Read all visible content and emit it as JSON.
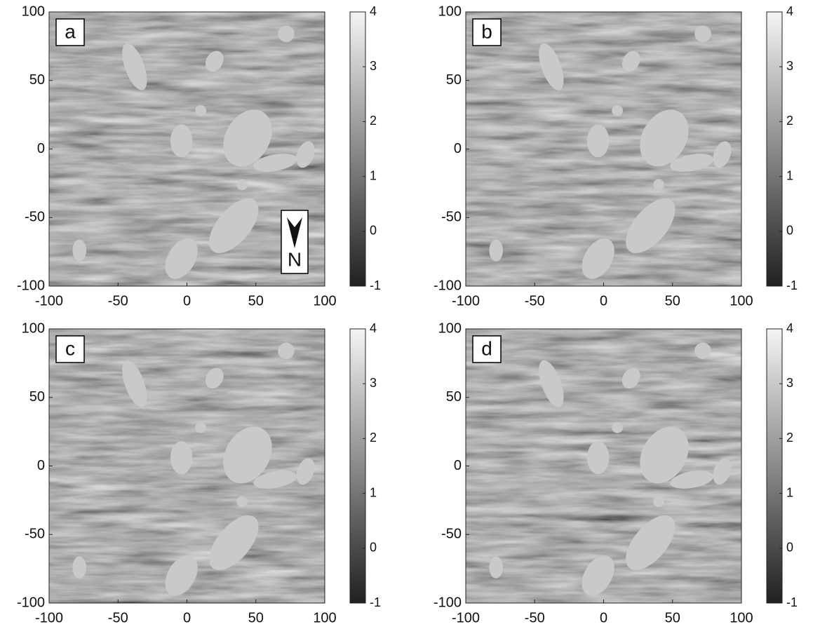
{
  "chart_data": [
    {
      "type": "heatmap",
      "label": "a",
      "annotation": "N",
      "xlim": [
        -100,
        100
      ],
      "xticks": [
        -100,
        -50,
        0,
        50,
        100
      ],
      "ylim": [
        -100,
        100
      ],
      "yticks": [
        -100,
        -50,
        0,
        50,
        100
      ],
      "clim": [
        -1,
        4
      ],
      "cticks": [
        -1,
        0,
        1,
        2,
        3,
        4
      ],
      "colormap": [
        "#202020",
        "#f4f4f4"
      ]
    },
    {
      "type": "heatmap",
      "label": "b",
      "xlim": [
        -100,
        100
      ],
      "xticks": [
        -100,
        -50,
        0,
        50,
        100
      ],
      "ylim": [
        -100,
        100
      ],
      "yticks": [
        -100,
        -50,
        0,
        50,
        100
      ],
      "clim": [
        -1,
        4
      ],
      "cticks": [
        -1,
        0,
        1,
        2,
        3,
        4
      ],
      "colormap": [
        "#202020",
        "#f4f4f4"
      ]
    },
    {
      "type": "heatmap",
      "label": "c",
      "xlim": [
        -100,
        100
      ],
      "xticks": [
        -100,
        -50,
        0,
        50,
        100
      ],
      "ylim": [
        -100,
        100
      ],
      "yticks": [
        -100,
        -50,
        0,
        50,
        100
      ],
      "clim": [
        -1,
        4
      ],
      "cticks": [
        -1,
        0,
        1,
        2,
        3,
        4
      ],
      "colormap": [
        "#202020",
        "#f4f4f4"
      ]
    },
    {
      "type": "heatmap",
      "label": "d",
      "xlim": [
        -100,
        100
      ],
      "xticks": [
        -100,
        -50,
        0,
        50,
        100
      ],
      "ylim": [
        -100,
        100
      ],
      "yticks": [
        -100,
        -50,
        0,
        50,
        100
      ],
      "clim": [
        -1,
        4
      ],
      "cticks": [
        -1,
        0,
        1,
        2,
        3,
        4
      ],
      "colormap": [
        "#202020",
        "#f4f4f4"
      ]
    }
  ]
}
